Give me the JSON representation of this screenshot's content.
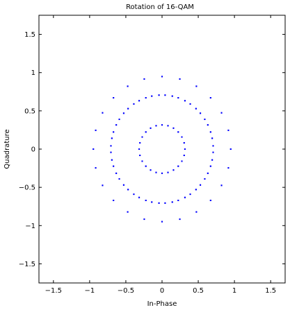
{
  "chart_data": {
    "type": "scatter",
    "title": "Rotation of 16-QAM",
    "xlabel": "In-Phase",
    "ylabel": "Quadrature",
    "xlim": [
      -1.7,
      1.7
    ],
    "ylim": [
      -1.75,
      1.75
    ],
    "xticks": [
      -1.5,
      -1,
      -0.5,
      0,
      0.5,
      1,
      1.5
    ],
    "xtick_labels": [
      "−1.5",
      "−1",
      "−0.5",
      "0",
      "0.5",
      "1",
      "1.5"
    ],
    "yticks": [
      -1.5,
      -1,
      -0.5,
      0,
      0.5,
      1,
      1.5
    ],
    "ytick_labels": [
      "−1.5",
      "−1",
      "−0.5",
      "0",
      "0.5",
      "1",
      "1.5"
    ],
    "grid": false,
    "legend": "none",
    "marker_color": "#0000ff",
    "series": [
      {
        "construction": "16-QAM constellation rotated by multiple angles",
        "qam_levels": [
          -0.6708,
          -0.2236,
          0.2236,
          0.6708
        ],
        "rotation_step_deg": 15,
        "rotation_count": 12
      }
    ]
  }
}
